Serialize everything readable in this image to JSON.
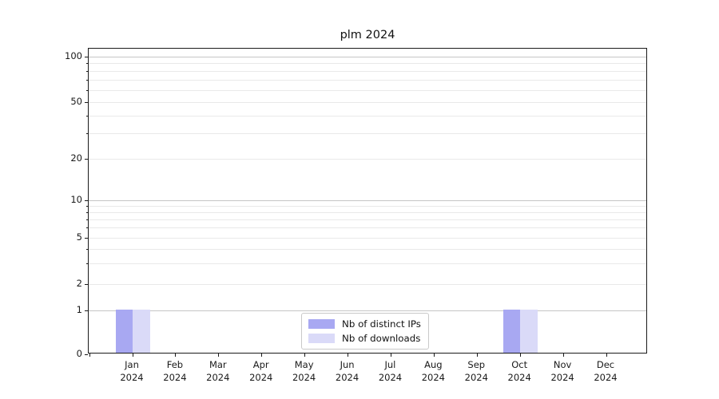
{
  "chart_data": {
    "type": "bar",
    "title": "plm 2024",
    "categories": [
      "Jan 2024",
      "Feb 2024",
      "Mar 2024",
      "Apr 2024",
      "May 2024",
      "Jun 2024",
      "Jul 2024",
      "Aug 2024",
      "Sep 2024",
      "Oct 2024",
      "Nov 2024",
      "Dec 2024"
    ],
    "series": [
      {
        "name": "Nb of distinct IPs",
        "color": "#a8a8f2",
        "values": [
          1,
          0,
          0,
          0,
          0,
          0,
          0,
          0,
          0,
          1,
          0,
          0
        ]
      },
      {
        "name": "Nb of downloads",
        "color": "#dadaf8",
        "values": [
          1,
          0,
          0,
          0,
          0,
          0,
          0,
          0,
          0,
          1,
          0,
          0
        ]
      }
    ],
    "xlabel": "",
    "ylabel": "",
    "yscale": "log-like (0 baseline shown)",
    "y_ticks": [
      0,
      1,
      2,
      5,
      10,
      20,
      50,
      100
    ],
    "y_minor_ticks": [
      3,
      4,
      6,
      7,
      8,
      9,
      30,
      40,
      60,
      70,
      80,
      90
    ],
    "ylim": [
      0,
      125
    ],
    "grid": true,
    "legend_position": "lower center"
  },
  "colors": {
    "background": "#ffffff",
    "axis": "#1a1a1a",
    "grid_major": "#c6c6c6",
    "grid_minor": "#e9e9e9",
    "legend_border": "#c9c9c9",
    "bar_distinct_ips": "#a8a8f2",
    "bar_downloads": "#dadaf8"
  }
}
